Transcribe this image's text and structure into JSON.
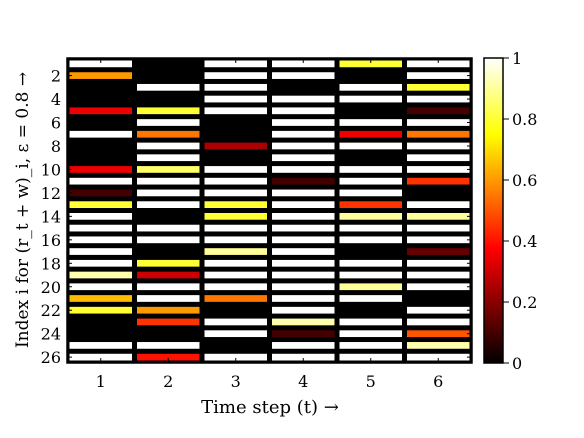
{
  "chart_data": {
    "type": "heatmap",
    "xlabel": "Time step (t) →",
    "ylabel": "Index i for (r_t + w)_i, ε = 0.8 →",
    "x_ticks": [
      "1",
      "2",
      "3",
      "4",
      "5",
      "6"
    ],
    "y_ticks": [
      "2",
      "4",
      "6",
      "8",
      "10",
      "12",
      "14",
      "16",
      "18",
      "20",
      "22",
      "24",
      "26"
    ],
    "colorbar": {
      "colormap": "hot",
      "range": [
        0,
        1
      ],
      "ticks": [
        "0",
        "0.2",
        "0.4",
        "0.6",
        "0.8",
        "1"
      ]
    },
    "values": [
      [
        1.0,
        0.0,
        1.0,
        1.0,
        0.8,
        1.0
      ],
      [
        0.6,
        0.0,
        1.0,
        1.0,
        0.0,
        1.0
      ],
      [
        0.0,
        1.0,
        1.0,
        0.0,
        1.0,
        0.8
      ],
      [
        0.0,
        0.0,
        1.0,
        1.0,
        1.0,
        1.0
      ],
      [
        0.35,
        0.8,
        1.0,
        1.0,
        0.0,
        0.1
      ],
      [
        0.0,
        1.0,
        0.0,
        1.0,
        1.0,
        1.0
      ],
      [
        1.0,
        0.55,
        0.0,
        1.0,
        0.35,
        0.55
      ],
      [
        0.0,
        1.0,
        0.25,
        1.0,
        1.0,
        1.0
      ],
      [
        0.0,
        1.0,
        0.0,
        1.0,
        0.0,
        1.0
      ],
      [
        0.35,
        0.85,
        1.0,
        1.0,
        1.0,
        1.0
      ],
      [
        1.0,
        1.0,
        1.0,
        0.1,
        1.0,
        0.45
      ],
      [
        0.1,
        1.0,
        1.0,
        1.0,
        1.0,
        0.0
      ],
      [
        0.8,
        1.0,
        0.8,
        1.0,
        0.45,
        1.0
      ],
      [
        1.0,
        0.0,
        0.8,
        1.0,
        0.9,
        0.9
      ],
      [
        1.0,
        1.0,
        1.0,
        1.0,
        1.0,
        1.0
      ],
      [
        1.0,
        1.0,
        1.0,
        1.0,
        1.0,
        1.0
      ],
      [
        1.0,
        0.0,
        0.9,
        1.0,
        0.0,
        0.15
      ],
      [
        1.0,
        0.8,
        1.0,
        1.0,
        1.0,
        1.0
      ],
      [
        0.92,
        0.3,
        1.0,
        1.0,
        1.0,
        1.0
      ],
      [
        1.0,
        1.0,
        1.0,
        1.0,
        0.9,
        1.0
      ],
      [
        0.65,
        1.0,
        0.55,
        1.0,
        1.0,
        0.0
      ],
      [
        0.8,
        0.6,
        0.0,
        1.0,
        0.0,
        1.0
      ],
      [
        0.0,
        0.45,
        1.0,
        0.92,
        1.0,
        1.0
      ],
      [
        0.0,
        0.0,
        1.0,
        0.1,
        1.0,
        0.5
      ],
      [
        1.0,
        1.0,
        0.0,
        1.0,
        1.0,
        0.92
      ],
      [
        1.0,
        0.4,
        1.0,
        1.0,
        1.0,
        1.0
      ]
    ]
  }
}
